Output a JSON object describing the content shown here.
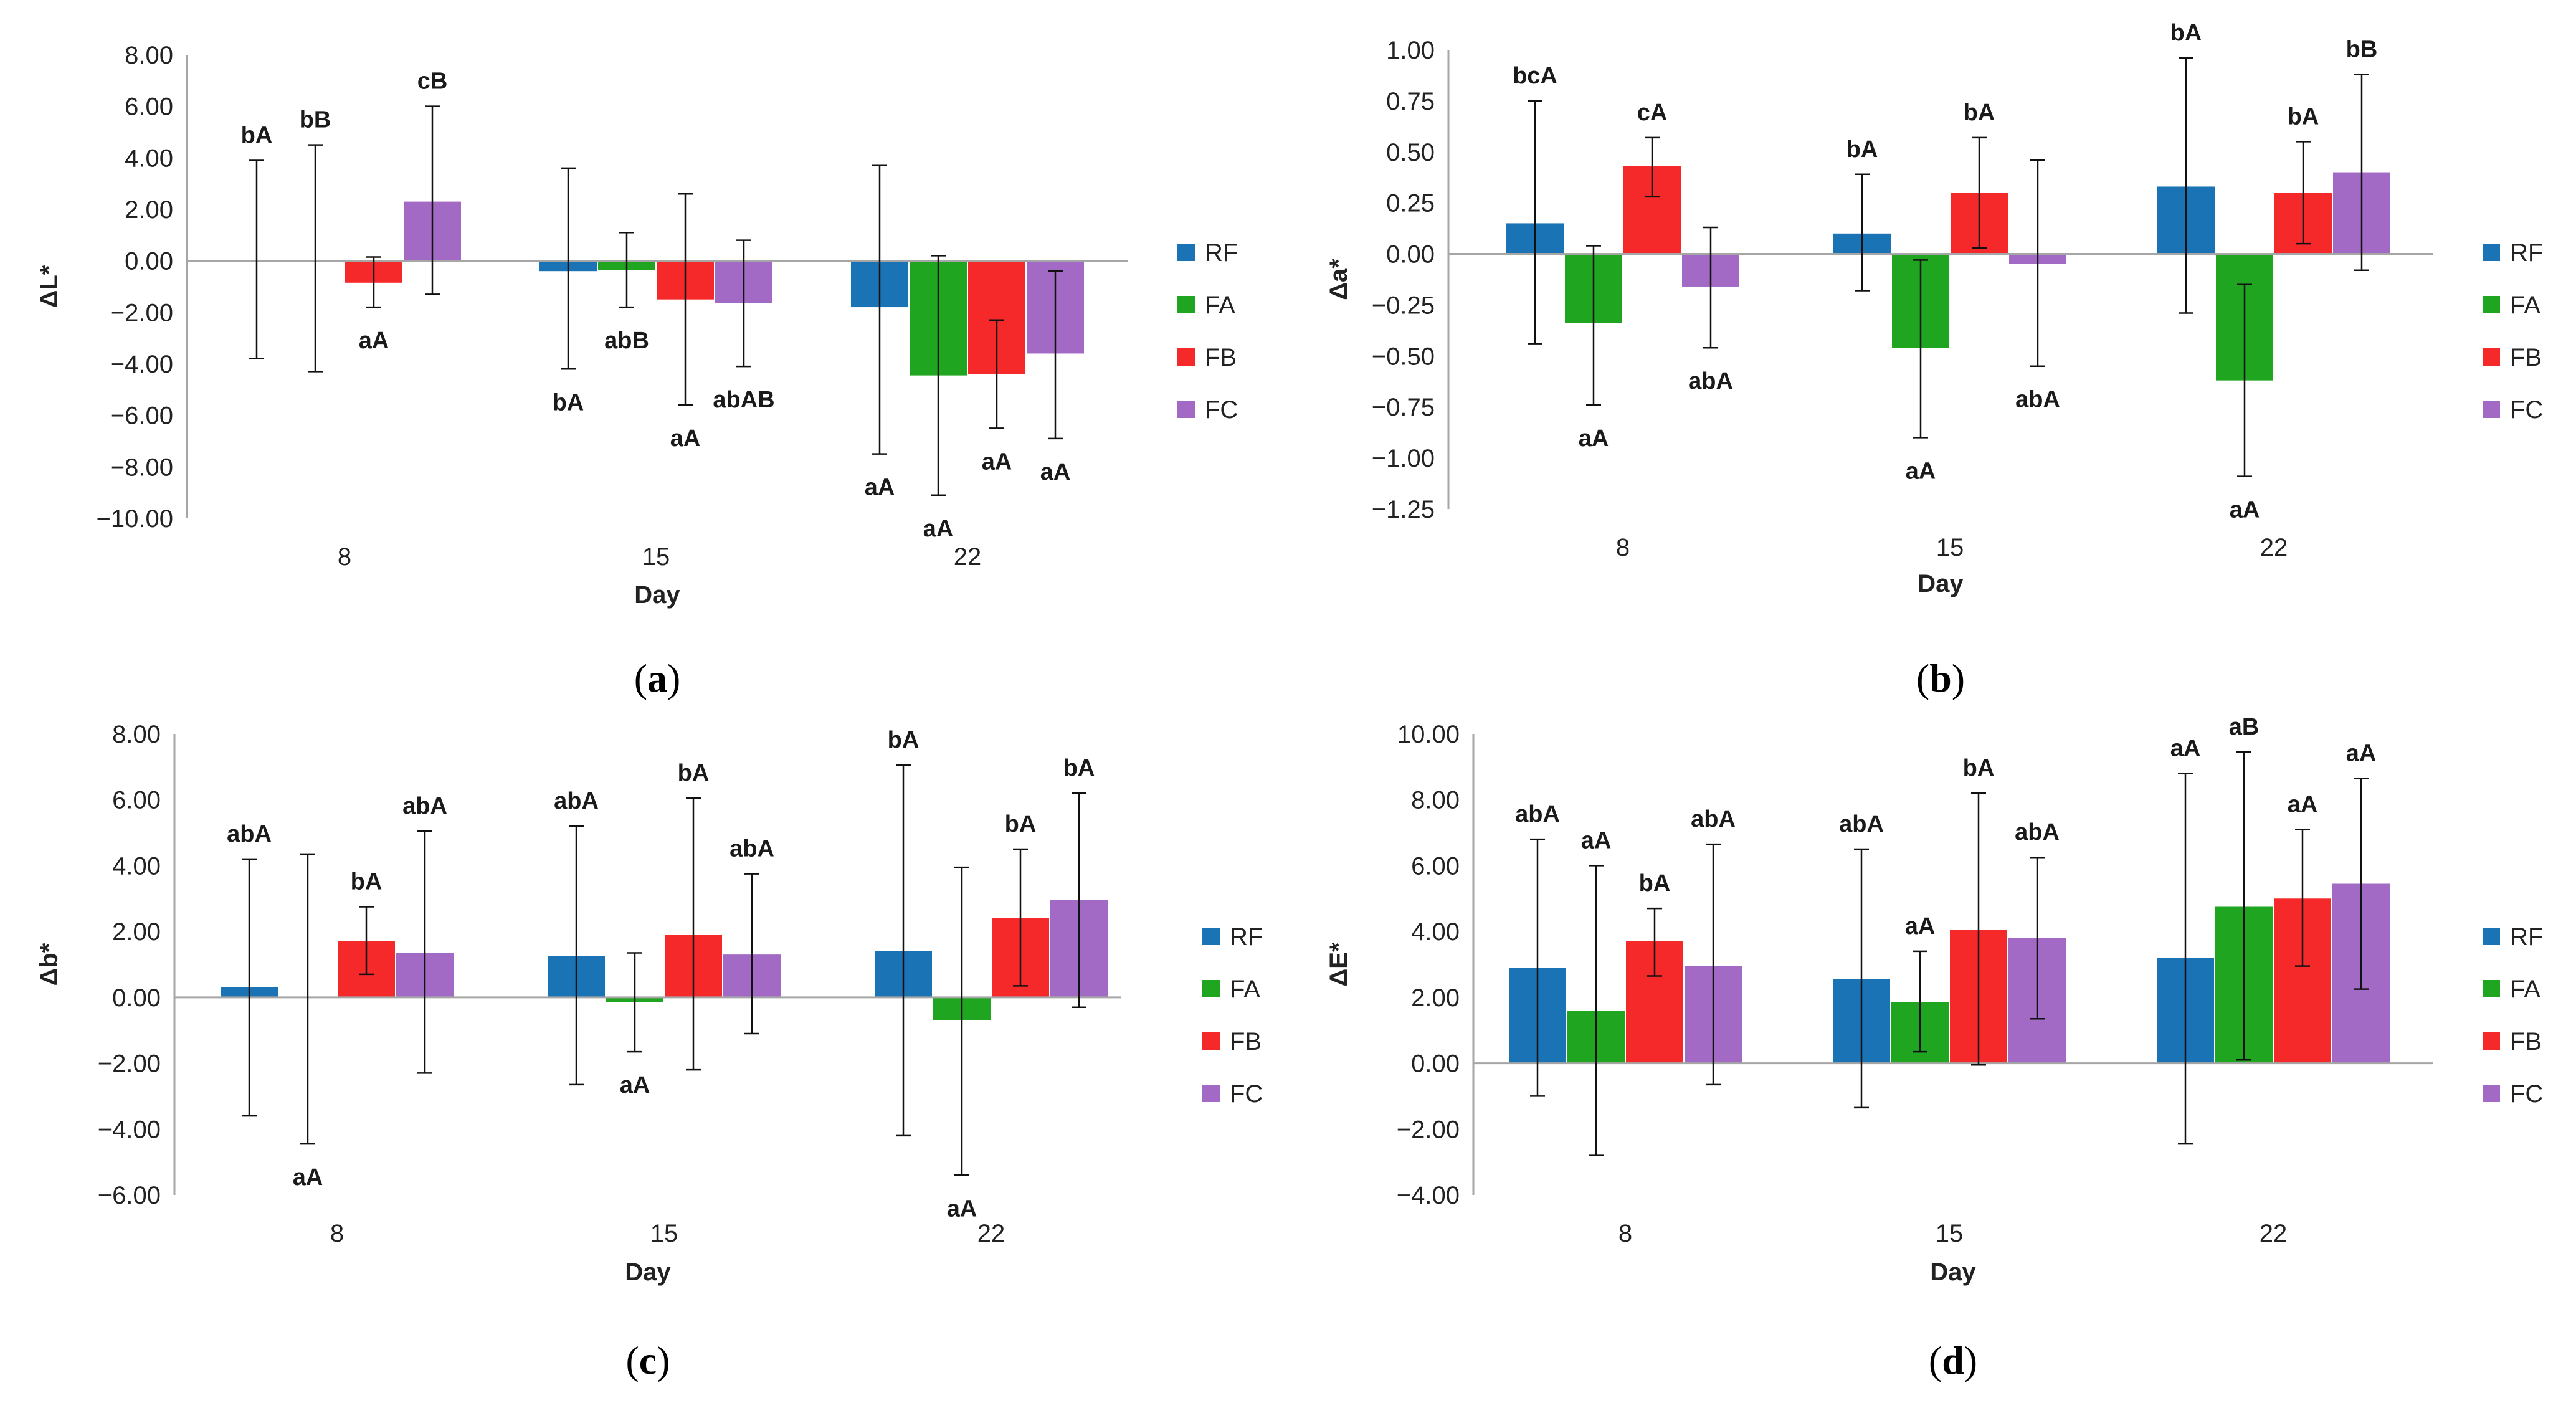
{
  "colors": {
    "RF": "#1a73b5",
    "FA": "#1fa51f",
    "FB": "#f5282a",
    "FC": "#a26ac4"
  },
  "chart_data": [
    {
      "type": "bar",
      "panel": "(a)",
      "panel_letter": "a",
      "categories": [
        "8",
        "15",
        "22"
      ],
      "xlabel": "Day",
      "ylabel": "ΔL*",
      "ylim": [
        -10,
        8
      ],
      "yticks": [
        "8.00",
        "6.00",
        "4.00",
        "2.00",
        "0.00",
        "−2.00",
        "−4.00",
        "−6.00",
        "−8.00",
        "−10.00"
      ],
      "legend": "right",
      "series": [
        {
          "name": "RF",
          "values": [
            0.0,
            -0.4,
            -1.8
          ],
          "err_low": [
            -3.8,
            -4.2,
            -7.5
          ],
          "err_high": [
            3.9,
            3.6,
            3.7
          ],
          "labels": [
            "bA",
            "bA",
            "aA"
          ]
        },
        {
          "name": "FA",
          "values": [
            0.0,
            -0.35,
            -4.45
          ],
          "err_low": [
            -4.3,
            -1.8,
            -9.1
          ],
          "err_high": [
            4.5,
            1.1,
            0.2
          ],
          "labels": [
            "bB",
            "abB",
            "aA"
          ]
        },
        {
          "name": "FB",
          "values": [
            -0.85,
            -1.5,
            -4.4
          ],
          "err_low": [
            -1.8,
            -5.6,
            -6.5
          ],
          "err_high": [
            0.15,
            2.6,
            -2.3
          ],
          "labels": [
            "aA",
            "aA",
            "aA"
          ]
        },
        {
          "name": "FC",
          "values": [
            2.3,
            -1.65,
            -3.6
          ],
          "err_low": [
            -1.3,
            -4.1,
            -6.9
          ],
          "err_high": [
            6.0,
            0.8,
            -0.4
          ],
          "labels": [
            "cB",
            "abAB",
            "aA"
          ]
        }
      ]
    },
    {
      "type": "bar",
      "panel": "(b)",
      "panel_letter": "b",
      "categories": [
        "8",
        "15",
        "22"
      ],
      "xlabel": "Day",
      "ylabel": "Δa*",
      "ylim": [
        -1.25,
        1.0
      ],
      "yticks": [
        "1.00",
        "0.75",
        "0.50",
        "0.25",
        "0.00",
        "−0.25",
        "−0.50",
        "−0.75",
        "−1.00",
        "−1.25"
      ],
      "legend": "right",
      "series": [
        {
          "name": "RF",
          "values": [
            0.15,
            0.1,
            0.33
          ],
          "err_low": [
            -0.44,
            -0.18,
            -0.29
          ],
          "err_high": [
            0.75,
            0.39,
            0.96
          ],
          "labels": [
            "bcA",
            "bA",
            "bA"
          ]
        },
        {
          "name": "FA",
          "values": [
            -0.34,
            -0.46,
            -0.62
          ],
          "err_low": [
            -0.74,
            -0.9,
            -1.09
          ],
          "err_high": [
            0.04,
            -0.03,
            -0.15
          ],
          "labels": [
            "aA",
            "aA",
            "aA"
          ]
        },
        {
          "name": "FB",
          "values": [
            0.43,
            0.3,
            0.3
          ],
          "err_low": [
            0.28,
            0.03,
            0.05
          ],
          "err_high": [
            0.57,
            0.57,
            0.55
          ],
          "labels": [
            "cA",
            "bA",
            "bA"
          ]
        },
        {
          "name": "FC",
          "values": [
            -0.16,
            -0.05,
            0.4
          ],
          "err_low": [
            -0.46,
            -0.55,
            -0.08
          ],
          "err_high": [
            0.13,
            0.46,
            0.88
          ],
          "labels": [
            "abA",
            "abA",
            "bB"
          ]
        }
      ]
    },
    {
      "type": "bar",
      "panel": "(c)",
      "panel_letter": "c",
      "categories": [
        "8",
        "15",
        "22"
      ],
      "xlabel": "Day",
      "ylabel": "Δb*",
      "ylim": [
        -6,
        8
      ],
      "yticks": [
        "8.00",
        "6.00",
        "4.00",
        "2.00",
        "0.00",
        "−2.00",
        "−4.00",
        "−6.00"
      ],
      "legend": "right",
      "series": [
        {
          "name": "RF",
          "values": [
            0.3,
            1.25,
            1.4
          ],
          "err_low": [
            -3.6,
            -2.65,
            -4.2
          ],
          "err_high": [
            4.2,
            5.2,
            7.05
          ],
          "labels": [
            "abA",
            "abA",
            "bA"
          ]
        },
        {
          "name": "FA",
          "values": [
            0.0,
            -0.15,
            -0.7
          ],
          "err_low": [
            -4.45,
            -1.65,
            -5.4
          ],
          "err_high": [
            4.35,
            1.35,
            3.95
          ],
          "labels": [
            "aA",
            "aA",
            "aA"
          ]
        },
        {
          "name": "FB",
          "values": [
            1.7,
            1.9,
            2.4
          ],
          "err_low": [
            0.7,
            -2.2,
            0.35
          ],
          "err_high": [
            2.75,
            6.05,
            4.5
          ],
          "labels": [
            "bA",
            "bA",
            "bA"
          ]
        },
        {
          "name": "FC",
          "values": [
            1.35,
            1.3,
            2.95
          ],
          "err_low": [
            -2.3,
            -1.1,
            -0.3
          ],
          "err_high": [
            5.05,
            3.75,
            6.2
          ],
          "labels": [
            "abA",
            "abA",
            "bA"
          ]
        }
      ]
    },
    {
      "type": "bar",
      "panel": "(d)",
      "panel_letter": "d",
      "categories": [
        "8",
        "15",
        "22"
      ],
      "xlabel": "Day",
      "ylabel": "ΔE*",
      "ylim": [
        -4,
        10
      ],
      "yticks": [
        "10.00",
        "8.00",
        "6.00",
        "4.00",
        "2.00",
        "0.00",
        "−2.00",
        "−4.00"
      ],
      "legend": "right",
      "series": [
        {
          "name": "RF",
          "values": [
            2.9,
            2.55,
            3.2
          ],
          "err_low": [
            -1.0,
            -1.35,
            -2.45
          ],
          "err_high": [
            6.8,
            6.5,
            8.8
          ],
          "labels": [
            "abA",
            "abA",
            "aA"
          ]
        },
        {
          "name": "FA",
          "values": [
            1.6,
            1.85,
            4.75
          ],
          "err_low": [
            -2.8,
            0.35,
            0.1
          ],
          "err_high": [
            6.0,
            3.4,
            9.45
          ],
          "labels": [
            "aA",
            "aA",
            "aB"
          ]
        },
        {
          "name": "FB",
          "values": [
            3.7,
            4.05,
            5.0
          ],
          "err_low": [
            2.65,
            -0.05,
            2.95
          ],
          "err_high": [
            4.7,
            8.2,
            7.1
          ],
          "labels": [
            "bA",
            "bA",
            "aA"
          ]
        },
        {
          "name": "FC",
          "values": [
            2.95,
            3.8,
            5.45
          ],
          "err_low": [
            -0.65,
            1.35,
            2.25
          ],
          "err_high": [
            6.65,
            6.25,
            8.65
          ],
          "labels": [
            "abA",
            "abA",
            "aA"
          ]
        }
      ]
    }
  ]
}
